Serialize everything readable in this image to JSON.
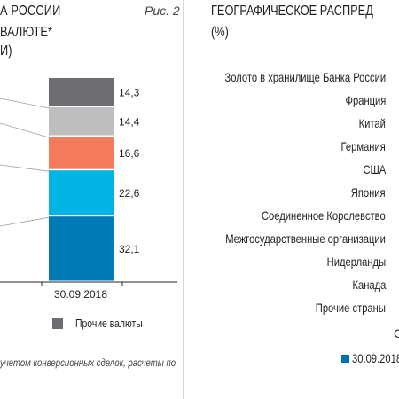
{
  "left_panel": {
    "title_line1": "А РОССИИ",
    "title_line2": "ВАЛЮТЕ*",
    "title_line3": "И)",
    "figure_label": "Рис. 2",
    "footnote": "учетом конверсионных сделок, расчеты по"
  },
  "right_panel": {
    "title_line1": "ГЕОГРАФИЧЕСКОЕ РАСПРЕД",
    "title_line2": "(%)",
    "countries": [
      "Золото в хранилище Банка России",
      "Франция",
      "Китай",
      "Германия",
      "США",
      "Япония",
      "Соединенное Королевство",
      "Межгосударственные организации",
      "Нидерланды",
      "Канада",
      "Прочие страны"
    ],
    "partial_marker": "С",
    "legend_label": "30.09.2018",
    "legend_color": "#0074b2"
  },
  "chart_data": {
    "type": "bar",
    "stacked": true,
    "categories": [
      "30.09.2018"
    ],
    "series": [
      {
        "name": "",
        "values": [
          32.1
        ],
        "color": "#0079b7"
      },
      {
        "name": "",
        "values": [
          22.6
        ],
        "color": "#00b5e6"
      },
      {
        "name": "",
        "values": [
          16.6
        ],
        "color": "#f47b5a"
      },
      {
        "name": "",
        "values": [
          14.4
        ],
        "color": "#bcbec0"
      },
      {
        "name": "Прочие валюты",
        "values": [
          14.3
        ],
        "color": "#6d6e71"
      }
    ],
    "data_labels": [
      "32.1",
      "22.6",
      "16.6",
      "14.4",
      "14.3"
    ],
    "legend_items": [
      "Прочие валюты"
    ],
    "ylim": [
      0,
      100
    ]
  }
}
